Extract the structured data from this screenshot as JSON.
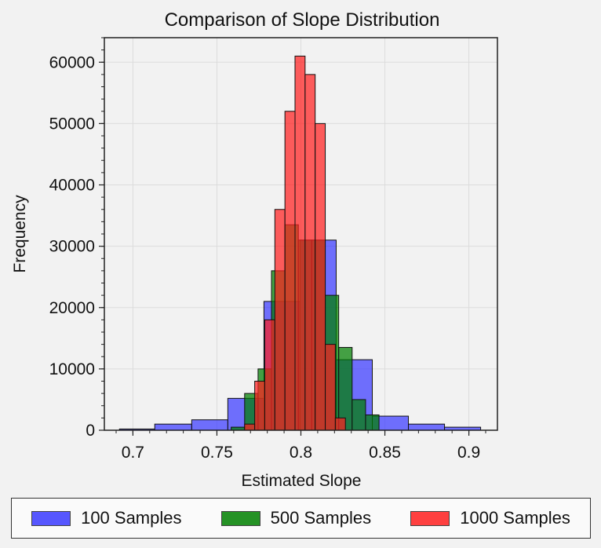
{
  "chart_data": {
    "type": "bar",
    "title": "Comparison of Slope Distribution",
    "xlabel": "Estimated Slope",
    "ylabel": "Frequency",
    "xlim": [
      0.683,
      0.917
    ],
    "ylim": [
      0,
      64000
    ],
    "x_ticks": [
      0.7,
      0.75,
      0.8,
      0.85,
      0.9
    ],
    "x_tick_labels": [
      "0.7",
      "0.75",
      "0.8",
      "0.85",
      "0.9"
    ],
    "y_ticks": [
      0,
      10000,
      20000,
      30000,
      40000,
      50000,
      60000
    ],
    "y_tick_labels": [
      "0",
      "10000",
      "20000",
      "30000",
      "40000",
      "50000",
      "60000"
    ],
    "grid": true,
    "legend_position": "bottom",
    "series": [
      {
        "name": "100 Samples",
        "color": "#3a3aff",
        "bins": [
          {
            "x0": 0.692,
            "x1": 0.713,
            "y": 200
          },
          {
            "x0": 0.713,
            "x1": 0.735,
            "y": 1000
          },
          {
            "x0": 0.735,
            "x1": 0.7565,
            "y": 1700
          },
          {
            "x0": 0.7565,
            "x1": 0.778,
            "y": 5200
          },
          {
            "x0": 0.778,
            "x1": 0.7995,
            "y": 21000
          },
          {
            "x0": 0.7995,
            "x1": 0.821,
            "y": 31000
          },
          {
            "x0": 0.821,
            "x1": 0.8425,
            "y": 11500
          },
          {
            "x0": 0.8425,
            "x1": 0.864,
            "y": 2300
          },
          {
            "x0": 0.864,
            "x1": 0.8855,
            "y": 1000
          },
          {
            "x0": 0.8855,
            "x1": 0.907,
            "y": 500
          }
        ]
      },
      {
        "name": "500 Samples",
        "color": "#008000",
        "bins": [
          {
            "x0": 0.7585,
            "x1": 0.7665,
            "y": 500
          },
          {
            "x0": 0.7665,
            "x1": 0.7745,
            "y": 6000
          },
          {
            "x0": 0.7745,
            "x1": 0.7825,
            "y": 10000
          },
          {
            "x0": 0.7825,
            "x1": 0.7905,
            "y": 26000
          },
          {
            "x0": 0.7905,
            "x1": 0.7985,
            "y": 33500
          },
          {
            "x0": 0.7985,
            "x1": 0.8065,
            "y": 31000
          },
          {
            "x0": 0.8065,
            "x1": 0.8145,
            "y": 31000
          },
          {
            "x0": 0.8145,
            "x1": 0.8225,
            "y": 22000
          },
          {
            "x0": 0.8225,
            "x1": 0.8305,
            "y": 13500
          },
          {
            "x0": 0.8305,
            "x1": 0.8385,
            "y": 5000
          },
          {
            "x0": 0.8385,
            "x1": 0.8465,
            "y": 2500
          }
        ]
      },
      {
        "name": "1000 Samples",
        "color": "#ff2020",
        "bins": [
          {
            "x0": 0.7665,
            "x1": 0.7725,
            "y": 1000
          },
          {
            "x0": 0.7725,
            "x1": 0.7785,
            "y": 8000
          },
          {
            "x0": 0.7785,
            "x1": 0.7845,
            "y": 18000
          },
          {
            "x0": 0.7845,
            "x1": 0.7905,
            "y": 36000
          },
          {
            "x0": 0.7905,
            "x1": 0.7965,
            "y": 52000
          },
          {
            "x0": 0.7965,
            "x1": 0.8025,
            "y": 61000
          },
          {
            "x0": 0.8025,
            "x1": 0.8085,
            "y": 58000
          },
          {
            "x0": 0.8085,
            "x1": 0.8145,
            "y": 50000
          },
          {
            "x0": 0.8145,
            "x1": 0.8205,
            "y": 14000
          },
          {
            "x0": 0.8205,
            "x1": 0.8265,
            "y": 2000
          }
        ]
      }
    ]
  }
}
